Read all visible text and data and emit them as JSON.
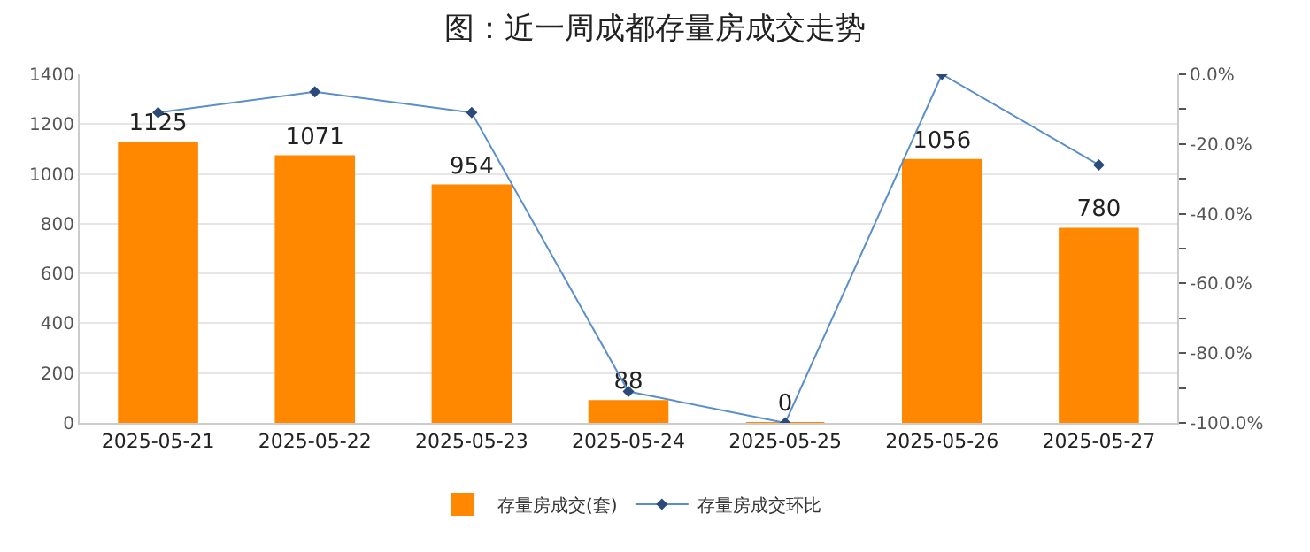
{
  "chart_data": {
    "type": "bar",
    "title": "图：近一周成都存量房成交走势",
    "categories": [
      "2025-05-21",
      "2025-05-22",
      "2025-05-23",
      "2025-05-24",
      "2025-05-25",
      "2025-05-26",
      "2025-05-27"
    ],
    "series": [
      {
        "name": "存量房成交(套)",
        "color": "#ff8800",
        "values": [
          1125,
          1071,
          954,
          88,
          0,
          1056,
          780
        ],
        "value_labels": [
          "1125",
          "1071",
          "954",
          "88",
          "0",
          "1056",
          "780"
        ]
      },
      {
        "name": "存量房成交环比",
        "type": "line",
        "axis": "y2",
        "color": "#5b8fc9",
        "marker": "diamond",
        "values": [
          -11,
          -5,
          -11,
          -91,
          -100,
          0,
          -26
        ]
      }
    ],
    "ylim": [
      0,
      1400
    ],
    "yticks": [
      0,
      200,
      400,
      600,
      800,
      1000,
      1200,
      1400
    ],
    "y2lim": [
      -100,
      0
    ],
    "y2ticks": [
      {
        "value": 0,
        "label": "0.0%"
      },
      {
        "value": -10,
        "label": null
      },
      {
        "value": -20,
        "label": "-20.0%"
      },
      {
        "value": -30,
        "label": null
      },
      {
        "value": -40,
        "label": "-40.0%"
      },
      {
        "value": -50,
        "label": null
      },
      {
        "value": -60,
        "label": "-60.0%"
      },
      {
        "value": -70,
        "label": null
      },
      {
        "value": -80,
        "label": "-80.0%"
      },
      {
        "value": -90,
        "label": null
      },
      {
        "value": -100,
        "label": "-100.0%"
      }
    ],
    "grid": "y",
    "legend": "bottom"
  }
}
